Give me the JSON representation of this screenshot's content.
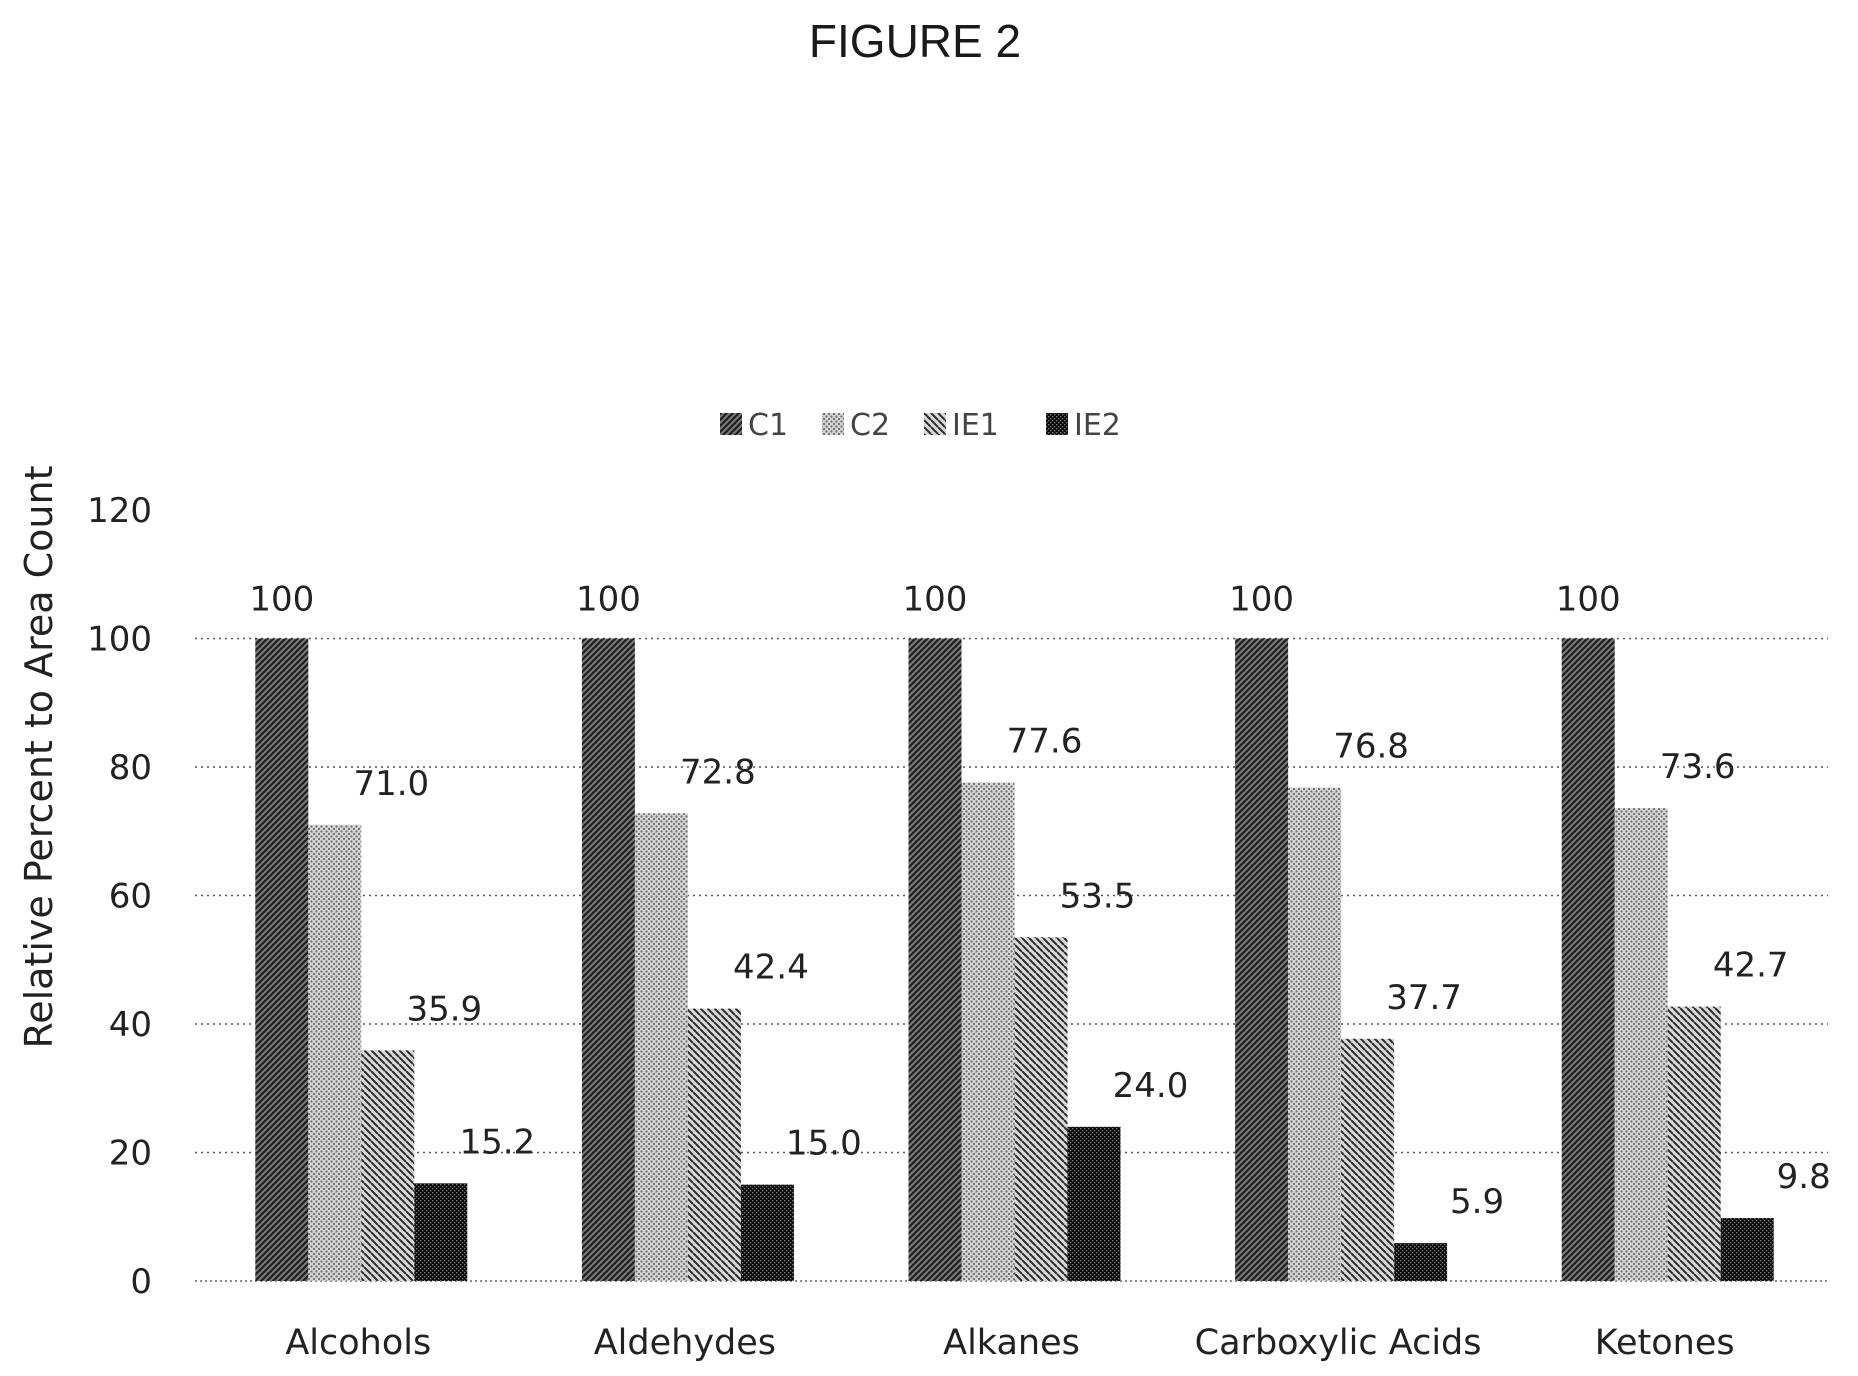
{
  "figure_label": "FIGURE 2",
  "chart_data": {
    "type": "bar",
    "title": "",
    "xlabel": "",
    "ylabel": "Relative Percent to Area Count",
    "ylim": [
      0,
      120
    ],
    "yticks": [
      0,
      20,
      40,
      60,
      80,
      100,
      120
    ],
    "grid": "horizontal dotted",
    "legend_position": "top",
    "categories": [
      "Alcohols",
      "Aldehydes",
      "Alkanes",
      "Carboxylic Acids",
      "Ketones"
    ],
    "series": [
      {
        "name": "C1",
        "pattern": "dense-diagonal",
        "color": "#3a3a3a",
        "values": [
          100,
          100,
          100,
          100,
          100
        ],
        "labels": [
          "100",
          "100",
          "100",
          "100",
          "100"
        ]
      },
      {
        "name": "C2",
        "pattern": "fine-dots",
        "color": "#9a9a9a",
        "values": [
          71.0,
          72.8,
          77.6,
          76.8,
          73.6
        ],
        "labels": [
          "71.0",
          "72.8",
          "77.6",
          "76.8",
          "73.6"
        ]
      },
      {
        "name": "IE1",
        "pattern": "diagonal-lines",
        "color": "#555555",
        "values": [
          35.9,
          42.4,
          53.5,
          37.7,
          42.7
        ],
        "labels": [
          "35.9",
          "42.4",
          "53.5",
          "37.7",
          "42.7"
        ]
      },
      {
        "name": "IE2",
        "pattern": "dark-checker",
        "color": "#111111",
        "values": [
          15.2,
          15.0,
          24.0,
          5.9,
          9.8
        ],
        "labels": [
          "15.2",
          "15.0",
          "24.0",
          "5.9",
          "9.8"
        ]
      }
    ]
  }
}
